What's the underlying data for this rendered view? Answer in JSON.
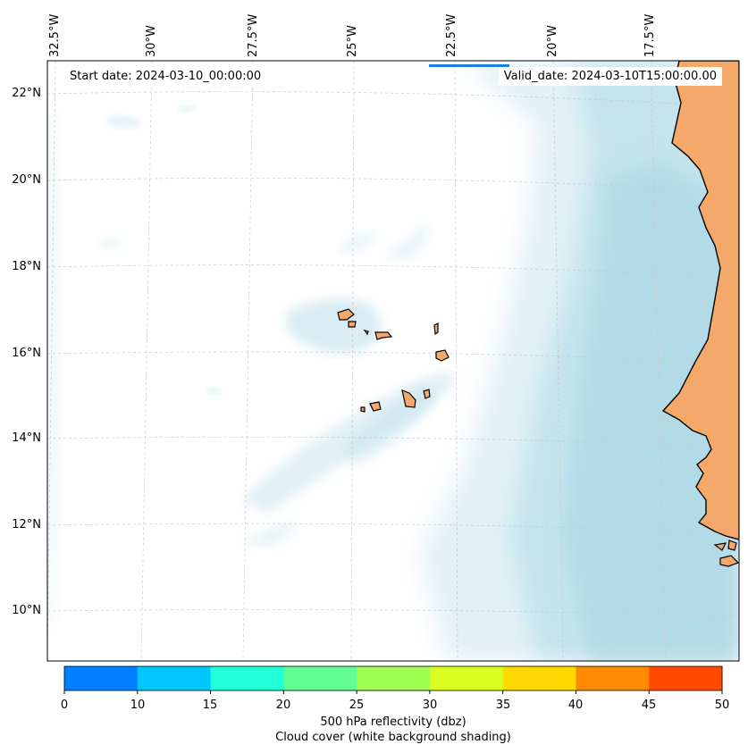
{
  "map": {
    "lon_labels": [
      "32.5°W",
      "30°W",
      "27.5°W",
      "25°W",
      "22.5°W",
      "20°W",
      "17.5°W"
    ],
    "lat_labels": [
      "22°N",
      "20°N",
      "18°N",
      "16°N",
      "14°N",
      "12°N",
      "10°N"
    ],
    "start_date": "Start date: 2024-03-10_00:00:00",
    "valid_date": "Valid_date: 2024-03-10T15:00:00.00",
    "land_color": "#f4a86a",
    "cloud_color": "#add8e6"
  },
  "colorbar": {
    "ticks": [
      "0",
      "10",
      "15",
      "20",
      "25",
      "30",
      "35",
      "40",
      "45",
      "50"
    ],
    "colors": [
      "#0080ff",
      "#00c8ff",
      "#20ffd8",
      "#60ff90",
      "#a0ff50",
      "#d8ff20",
      "#ffd800",
      "#ff8c00",
      "#ff4a00"
    ],
    "label": "500 hPa reflectivity (dbz)",
    "sublabel": "Cloud cover (white background shading)"
  }
}
